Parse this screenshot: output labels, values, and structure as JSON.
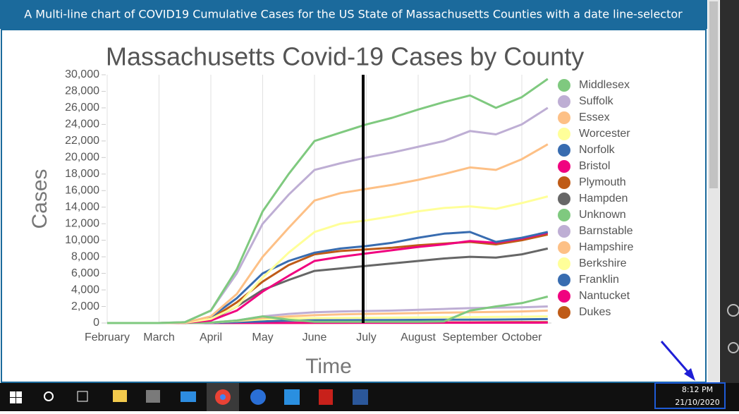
{
  "header": {
    "title": "A Multi-line chart of COVID19 Cumulative Cases for the US State of Massachusetts Counties with a date line-selector"
  },
  "taskbar": {
    "time": "8:12 PM",
    "date": "21/10/2020"
  },
  "chart_data": {
    "type": "line",
    "title": "Massachusetts Covid-19 Cases by County",
    "x_label": "Time",
    "y_label": "Cases",
    "categories": [
      "February",
      null,
      "March",
      null,
      "April",
      null,
      "May",
      null,
      "June",
      null,
      "July",
      null,
      "August",
      null,
      "September",
      null,
      "October",
      null
    ],
    "ylim": [
      0,
      30000
    ],
    "yticks": [
      0,
      {
        "value": 2000,
        "label": "2,000"
      },
      {
        "value": 4000,
        "label": "4,000"
      },
      {
        "value": 6000,
        "label": "6,000"
      },
      {
        "value": 8000,
        "label": "8,000"
      },
      {
        "value": 10000,
        "label": "10,000"
      },
      {
        "value": 12000,
        "label": "12,000"
      },
      {
        "value": 14000,
        "label": "14,000"
      },
      {
        "value": 16000,
        "label": "16,000"
      },
      {
        "value": 18000,
        "label": "18,000"
      },
      {
        "value": 20000,
        "label": "20,000"
      },
      {
        "value": 22000,
        "label": "22,000"
      },
      {
        "value": 24000,
        "label": "24,000"
      },
      {
        "value": 26000,
        "label": "26,000"
      },
      {
        "value": 28000,
        "label": "28,000"
      },
      {
        "value": 30000,
        "label": "30,000"
      }
    ],
    "grid": true,
    "series": [
      {
        "name": "Middlesex",
        "color": "#7fc97f",
        "values": [
          0,
          0,
          0,
          100,
          1500,
          6500,
          13500,
          18000,
          22000,
          23000,
          24000,
          24800,
          25800,
          26700,
          27500,
          26000,
          27300,
          29500
        ]
      },
      {
        "name": "Suffolk",
        "color": "#beaed4",
        "values": [
          0,
          0,
          0,
          100,
          1500,
          6000,
          12000,
          15500,
          18500,
          19300,
          20000,
          20600,
          21300,
          22000,
          23200,
          22800,
          24000,
          26000
        ]
      },
      {
        "name": "Essex",
        "color": "#fdc086",
        "values": [
          0,
          0,
          0,
          50,
          800,
          3500,
          8000,
          11500,
          14800,
          15700,
          16200,
          16700,
          17300,
          18000,
          18800,
          18500,
          19800,
          21600
        ]
      },
      {
        "name": "Worcester",
        "color": "#ffff99",
        "values": [
          0,
          0,
          0,
          30,
          500,
          2000,
          5500,
          8500,
          11000,
          12000,
          12400,
          12900,
          13500,
          13900,
          14100,
          13800,
          14500,
          15300
        ]
      },
      {
        "name": "Norfolk",
        "color": "#386cb0",
        "values": [
          0,
          0,
          0,
          50,
          700,
          3000,
          6000,
          7500,
          8500,
          9000,
          9300,
          9700,
          10300,
          10800,
          11000,
          9800,
          10300,
          11000
        ]
      },
      {
        "name": "Bristol",
        "color": "#f0027f",
        "values": [
          0,
          0,
          0,
          20,
          300,
          1500,
          3800,
          5700,
          7500,
          8000,
          8400,
          8800,
          9200,
          9500,
          9900,
          9700,
          10200,
          10900
        ]
      },
      {
        "name": "Plymouth",
        "color": "#bf5b17",
        "values": [
          0,
          0,
          0,
          30,
          500,
          2500,
          5000,
          7000,
          8300,
          8700,
          8900,
          9100,
          9400,
          9600,
          9800,
          9500,
          10000,
          10700
        ]
      },
      {
        "name": "Hampden",
        "color": "#666666",
        "values": [
          0,
          0,
          0,
          20,
          400,
          2000,
          4000,
          5200,
          6300,
          6600,
          6900,
          7200,
          7500,
          7800,
          8000,
          7900,
          8300,
          9000
        ]
      },
      {
        "name": "Unknown",
        "color": "#7fc97f",
        "values": [
          0,
          0,
          0,
          0,
          50,
          300,
          800,
          400,
          150,
          150,
          150,
          150,
          150,
          200,
          1500,
          2000,
          2400,
          3200
        ]
      },
      {
        "name": "Barnstable",
        "color": "#beaed4",
        "values": [
          0,
          0,
          0,
          0,
          50,
          300,
          800,
          1100,
          1300,
          1400,
          1450,
          1500,
          1600,
          1700,
          1800,
          1850,
          1900,
          2000
        ]
      },
      {
        "name": "Hampshire",
        "color": "#fdc086",
        "values": [
          0,
          0,
          0,
          0,
          50,
          300,
          600,
          800,
          950,
          1050,
          1100,
          1150,
          1200,
          1250,
          1300,
          1350,
          1400,
          1500
        ]
      },
      {
        "name": "Berkshire",
        "color": "#ffff99",
        "values": [
          0,
          0,
          0,
          0,
          50,
          250,
          450,
          550,
          600,
          620,
          640,
          660,
          680,
          700,
          720,
          740,
          760,
          800
        ]
      },
      {
        "name": "Franklin",
        "color": "#386cb0",
        "values": [
          0,
          0,
          0,
          0,
          20,
          100,
          200,
          300,
          330,
          340,
          350,
          360,
          380,
          400,
          410,
          420,
          440,
          480
        ]
      },
      {
        "name": "Nantucket",
        "color": "#f0027f",
        "values": [
          0,
          0,
          0,
          0,
          0,
          5,
          10,
          12,
          14,
          15,
          18,
          20,
          25,
          30,
          35,
          40,
          45,
          55
        ]
      },
      {
        "name": "Dukes",
        "color": "#bf5b17",
        "values": [
          0,
          0,
          0,
          0,
          2,
          8,
          15,
          20,
          25,
          30,
          40,
          50,
          60,
          70,
          80,
          90,
          100,
          110
        ]
      }
    ]
  }
}
